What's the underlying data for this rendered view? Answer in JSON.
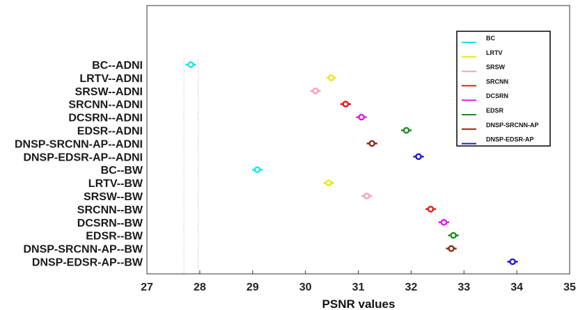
{
  "chart_data": {
    "type": "scatter",
    "xlabel": "PSNR values",
    "xlim": [
      27,
      35
    ],
    "xticks": [
      27,
      28,
      29,
      30,
      31,
      32,
      33,
      34,
      35
    ],
    "reference_lines_x": [
      27.7,
      27.97
    ],
    "categories": [
      "BC--ADNI",
      "LRTV--ADNI",
      "SRSW--ADNI",
      "SRCNN--ADNI",
      "DCSRN--ADNI",
      "EDSR--ADNI",
      "DNSP-SRCNN-AP--ADNI",
      "DNSP-EDSR-AP--ADNI",
      "BC--BW",
      "LRTV--BW",
      "SRSW--BW",
      "SRCNN--BW",
      "DCSRN--BW",
      "EDSR--BW",
      "DNSP-SRCNN-AP--BW",
      "DNSP-EDSR-AP--BW"
    ],
    "points": [
      {
        "category": "BC--ADNI",
        "value": 27.83,
        "interval": [
          27.73,
          27.93
        ],
        "color": "#19e6e6"
      },
      {
        "category": "LRTV--ADNI",
        "value": 30.49,
        "interval": [
          30.4,
          30.58
        ],
        "color": "#e6e619"
      },
      {
        "category": "SRSW--ADNI",
        "value": 30.19,
        "interval": [
          30.09,
          30.29
        ],
        "color": "#f2a0b8"
      },
      {
        "category": "SRCNN--ADNI",
        "value": 30.76,
        "interval": [
          30.66,
          30.86
        ],
        "color": "#e61919"
      },
      {
        "category": "DCSRN--ADNI",
        "value": 31.06,
        "interval": [
          30.96,
          31.16
        ],
        "color": "#e619e6"
      },
      {
        "category": "EDSR--ADNI",
        "value": 31.91,
        "interval": [
          31.81,
          32.01
        ],
        "color": "#1a8c1a"
      },
      {
        "category": "DNSP-SRCNN-AP--ADNI",
        "value": 31.26,
        "interval": [
          31.16,
          31.36
        ],
        "color": "#8c2a10"
      },
      {
        "category": "DNSP-EDSR-AP--ADNI",
        "value": 32.14,
        "interval": [
          32.04,
          32.24
        ],
        "color": "#1a1ad9"
      },
      {
        "category": "BC--BW",
        "value": 29.09,
        "interval": [
          28.99,
          29.19
        ],
        "color": "#19e6e6"
      },
      {
        "category": "LRTV--BW",
        "value": 30.44,
        "interval": [
          30.34,
          30.54
        ],
        "color": "#e6e619"
      },
      {
        "category": "SRSW--BW",
        "value": 31.16,
        "interval": [
          31.06,
          31.26
        ],
        "color": "#f2a0b8"
      },
      {
        "category": "SRCNN--BW",
        "value": 32.37,
        "interval": [
          32.27,
          32.47
        ],
        "color": "#e61919"
      },
      {
        "category": "DCSRN--BW",
        "value": 32.62,
        "interval": [
          32.52,
          32.72
        ],
        "color": "#e619e6"
      },
      {
        "category": "EDSR--BW",
        "value": 32.8,
        "interval": [
          32.7,
          32.9
        ],
        "color": "#1a8c1a"
      },
      {
        "category": "DNSP-SRCNN-AP--BW",
        "value": 32.76,
        "interval": [
          32.66,
          32.86
        ],
        "color": "#8c2a10"
      },
      {
        "category": "DNSP-EDSR-AP--BW",
        "value": 33.92,
        "interval": [
          33.82,
          34.02
        ],
        "color": "#1a1ad9"
      }
    ],
    "legend": {
      "placement": "top-right",
      "entries": [
        {
          "name": "BC",
          "color": "#19e6e6"
        },
        {
          "name": "LRTV",
          "color": "#e6e619"
        },
        {
          "name": "SRSW",
          "color": "#f2a0b8"
        },
        {
          "name": "SRCNN",
          "color": "#e61919"
        },
        {
          "name": "DCSRN",
          "color": "#e619e6"
        },
        {
          "name": "EDSR",
          "color": "#1a8c1a"
        },
        {
          "name": "DNSP-SRCNN-AP",
          "color": "#8c2a10"
        },
        {
          "name": "DNSP-EDSR-AP",
          "color": "#1a1ad9"
        }
      ]
    },
    "grid": false
  }
}
